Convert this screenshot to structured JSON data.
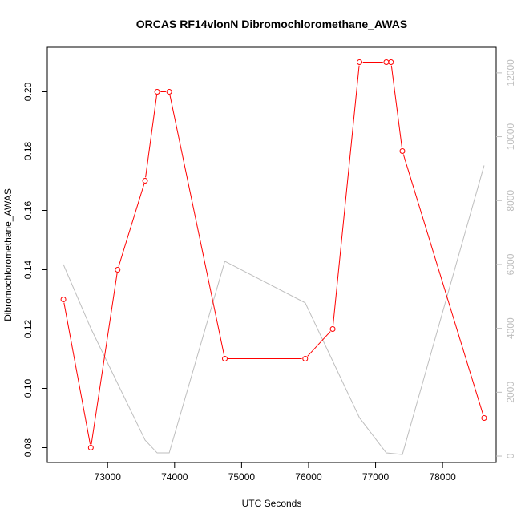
{
  "chart_data": {
    "type": "line",
    "title": "ORCAS RF14vlonN Dibromochloromethane_AWAS",
    "xlabel": "UTC Seconds",
    "ylabel": "Dibromochloromethane_AWAS",
    "xlim": [
      72100,
      78800
    ],
    "ylim": [
      0.075,
      0.215
    ],
    "y2lim": [
      -200,
      12800
    ],
    "x_ticks": [
      73000,
      74000,
      75000,
      76000,
      77000,
      78000
    ],
    "y_ticks": [
      0.08,
      0.1,
      0.12,
      0.14,
      0.16,
      0.18,
      0.2
    ],
    "y2_ticks": [
      0,
      2000,
      4000,
      6000,
      8000,
      10000,
      12000
    ],
    "x_tick_labels": [
      "73000",
      "74000",
      "75000",
      "76000",
      "77000",
      "78000"
    ],
    "y_tick_labels": [
      "0.08",
      "0.10",
      "0.12",
      "0.14",
      "0.16",
      "0.18",
      "0.20"
    ],
    "y2_tick_labels": [
      "0",
      "2000",
      "4000",
      "6000",
      "8000",
      "10000",
      "12000"
    ],
    "grid": false,
    "series": [
      {
        "color": "#ff0000",
        "axis": "left",
        "marker": "open-circle",
        "x": [
          72340,
          72750,
          73150,
          73560,
          73740,
          73920,
          74750,
          75950,
          76360,
          76760,
          77160,
          77230,
          77400,
          78620
        ],
        "y": [
          0.13,
          0.08,
          0.14,
          0.17,
          0.2,
          0.2,
          0.11,
          0.11,
          0.12,
          0.21,
          0.21,
          0.21,
          0.18,
          0.09
        ]
      },
      {
        "color": "#bebebe",
        "axis": "right",
        "marker": "none",
        "x": [
          72340,
          72750,
          73560,
          73740,
          73920,
          74750,
          75950,
          76760,
          77160,
          77400,
          78620
        ],
        "y": [
          6000,
          4000,
          500,
          100,
          100,
          6100,
          4800,
          1200,
          100,
          50,
          9100
        ]
      }
    ]
  }
}
